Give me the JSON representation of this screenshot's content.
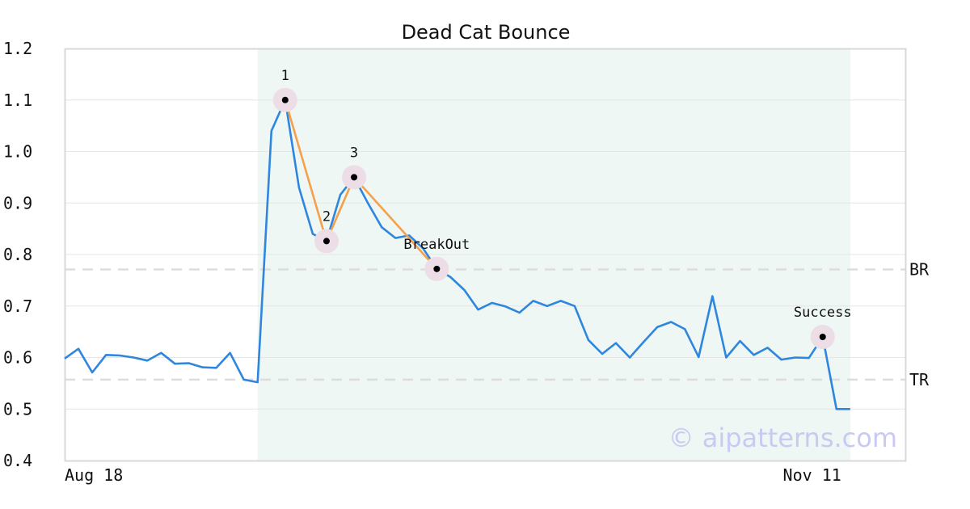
{
  "chart_data": {
    "type": "line",
    "title": "Dead Cat Bounce",
    "watermark": "© aipatterns.com",
    "x_tick_labels": [
      {
        "index": 0,
        "label": "Aug 18"
      },
      {
        "index": 56,
        "label": "Nov 11"
      }
    ],
    "ylim": [
      0.4,
      1.2
    ],
    "yticks": [
      "0.4",
      "0.5",
      "0.6",
      "0.7",
      "0.8",
      "0.9",
      "1.0",
      "1.1",
      "1.2"
    ],
    "grid": true,
    "pattern_region": {
      "start_index": 14,
      "end_index": 57
    },
    "series": [
      {
        "color": "#2e86de",
        "values": [
          0.598,
          0.617,
          0.571,
          0.605,
          0.604,
          0.6,
          0.594,
          0.609,
          0.588,
          0.589,
          0.581,
          0.58,
          0.609,
          0.557,
          0.552,
          1.04,
          1.1,
          0.93,
          0.84,
          0.826,
          0.916,
          0.95,
          0.9,
          0.853,
          0.832,
          0.837,
          0.812,
          0.772,
          0.756,
          0.731,
          0.693,
          0.706,
          0.699,
          0.687,
          0.71,
          0.7,
          0.71,
          0.7,
          0.634,
          0.607,
          0.628,
          0.6,
          0.63,
          0.659,
          0.669,
          0.655,
          0.601,
          0.719,
          0.6,
          0.632,
          0.605,
          0.619,
          0.596,
          0.6,
          0.599,
          0.64,
          0.5,
          0.5
        ]
      }
    ],
    "pattern_line": {
      "color": "#f5a04a",
      "point_indices": [
        16,
        19,
        21,
        27
      ]
    },
    "points": [
      {
        "index": 16,
        "value": 1.1,
        "label": "1"
      },
      {
        "index": 19,
        "value": 0.826,
        "label": "2"
      },
      {
        "index": 21,
        "value": 0.95,
        "label": "3"
      },
      {
        "index": 27,
        "value": 0.772,
        "label": "BreakOut"
      },
      {
        "index": 55,
        "value": 0.64,
        "label": "Success"
      }
    ],
    "levels": [
      {
        "label": "BR",
        "value": 0.771
      },
      {
        "label": "TR",
        "value": 0.557
      }
    ],
    "colors": {
      "line": "#2e86de",
      "pattern": "#f5a04a",
      "region": "#eef7f3",
      "marker_halo": "#ecdde6",
      "grid": "#e6e6e6"
    }
  }
}
